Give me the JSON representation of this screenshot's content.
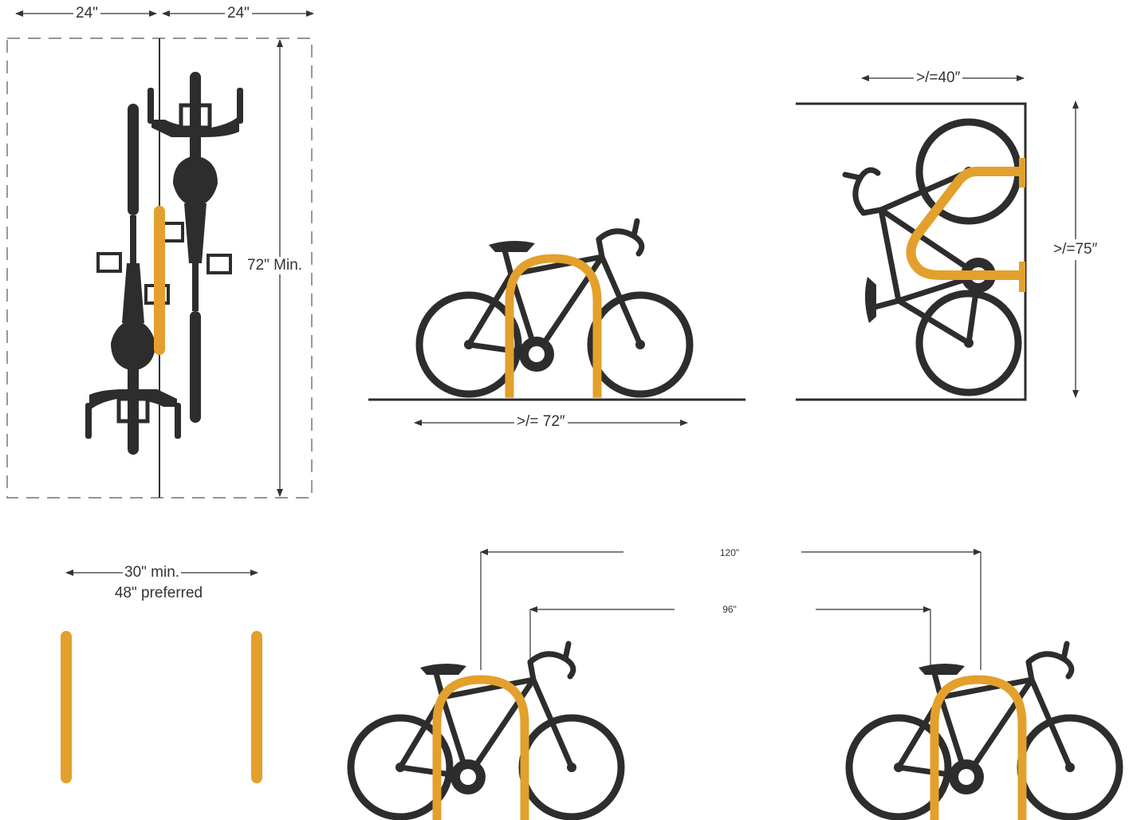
{
  "colors": {
    "rack": "#E3A02C",
    "bike": "#2D2D2D",
    "line": "#333333",
    "background": "#FFFFFF"
  },
  "top_view": {
    "width_left": "24\"",
    "width_right": "24\"",
    "length": "72\" Min."
  },
  "side_view": {
    "length": ">/= 72″"
  },
  "wall_view": {
    "depth": ">/=40″",
    "height": ">/=75″"
  },
  "spacing_view": {
    "min": "30\" min.",
    "preferred": "48\" preferred"
  },
  "double_view": {
    "outer": "120\"",
    "inner": "96\""
  }
}
